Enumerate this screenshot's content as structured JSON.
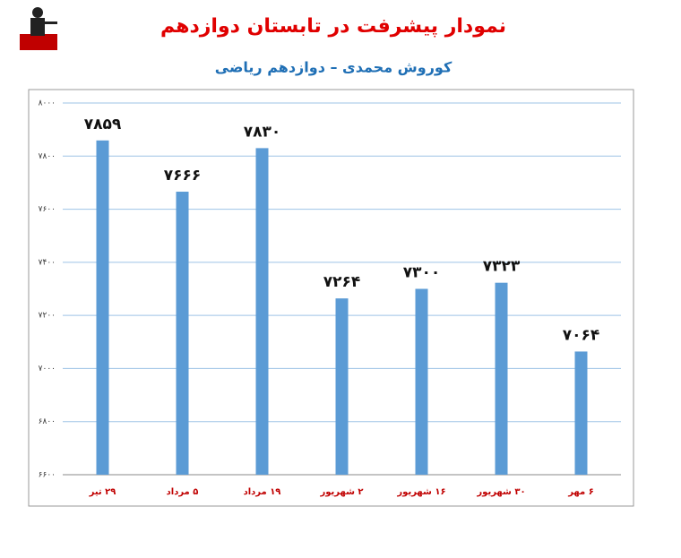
{
  "chart_data": {
    "type": "bar",
    "title": "نمودار پیشرفت در تابستان دوازدهم",
    "subtitle": "کوروش محمدی – دوازدهم ریاضی",
    "categories": [
      "۲۹ تیر",
      "۵ مرداد",
      "۱۹ مرداد",
      "۲ شهریور",
      "۱۶ شهریور",
      "۳۰ شهریور",
      "۶ مهر"
    ],
    "values": [
      7859,
      7666,
      7830,
      7264,
      7300,
      7323,
      7064
    ],
    "value_labels": [
      "۷۸۵۹",
      "۷۶۶۶",
      "۷۸۳۰",
      "۷۲۶۴",
      "۷۳۰۰",
      "۷۳۲۳",
      "۷۰۶۴"
    ],
    "color": "#5b9bd5",
    "ylim": [
      6600,
      8000
    ],
    "yticks": [
      {
        "value": 6600,
        "label": "۶۶۰۰"
      },
      {
        "value": 6800,
        "label": "۶۸۰۰"
      },
      {
        "value": 7000,
        "label": "۷۰۰۰"
      },
      {
        "value": 7200,
        "label": "۷۲۰۰"
      },
      {
        "value": 7400,
        "label": "۷۴۰۰"
      },
      {
        "value": 7600,
        "label": "۷۶۰۰"
      },
      {
        "value": 7800,
        "label": "۷۸۰۰"
      },
      {
        "value": 8000,
        "label": "۸۰۰۰"
      }
    ],
    "grid": true
  }
}
